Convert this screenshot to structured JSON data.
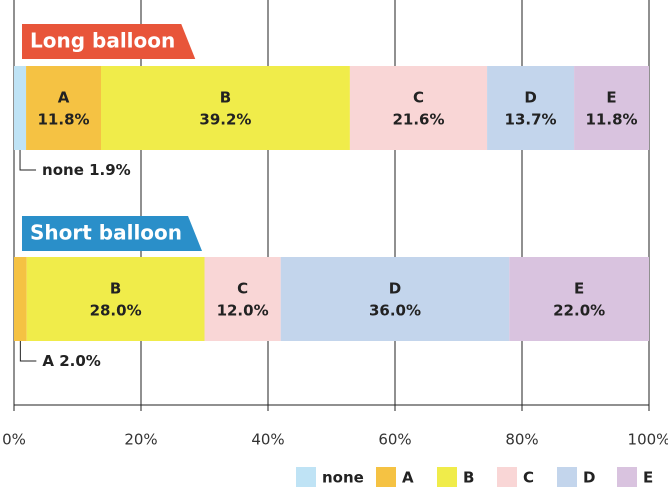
{
  "chart_data": {
    "type": "bar",
    "orientation": "horizontal",
    "stacked": true,
    "categories": [
      "Long balloon",
      "Short balloon"
    ],
    "category_colors": [
      "#e8553a",
      "#2a8fc9"
    ],
    "series": [
      {
        "name": "none",
        "color": "#bfe3f5",
        "values": [
          1.9,
          0
        ],
        "value_labels": [
          "1.9%",
          null
        ]
      },
      {
        "name": "A",
        "color": "#f5c243",
        "values": [
          11.8,
          2.0
        ],
        "value_labels": [
          "11.8%",
          "2.0%"
        ]
      },
      {
        "name": "B",
        "color": "#f0ec4a",
        "values": [
          39.2,
          28.0
        ],
        "value_labels": [
          "39.2%",
          "28.0%"
        ]
      },
      {
        "name": "C",
        "color": "#f9d6d6",
        "values": [
          21.6,
          12.0
        ],
        "value_labels": [
          "21.6%",
          "12.0%"
        ]
      },
      {
        "name": "D",
        "color": "#c3d5ec",
        "values": [
          13.7,
          36.0
        ],
        "value_labels": [
          "13.7%",
          "36.0%"
        ]
      },
      {
        "name": "E",
        "color": "#d9c3df",
        "values": [
          11.8,
          22.0
        ],
        "value_labels": [
          "11.8%",
          "22.0%"
        ]
      }
    ],
    "xlim": [
      0,
      100
    ],
    "xticks": [
      {
        "value": 0,
        "label": "0%"
      },
      {
        "value": 20,
        "label": "20%"
      },
      {
        "value": 40,
        "label": "40%"
      },
      {
        "value": 60,
        "label": "60%"
      },
      {
        "value": 80,
        "label": "80%"
      },
      {
        "value": 100,
        "label": "100%"
      }
    ],
    "grid": true,
    "legend": "bottom-right"
  }
}
